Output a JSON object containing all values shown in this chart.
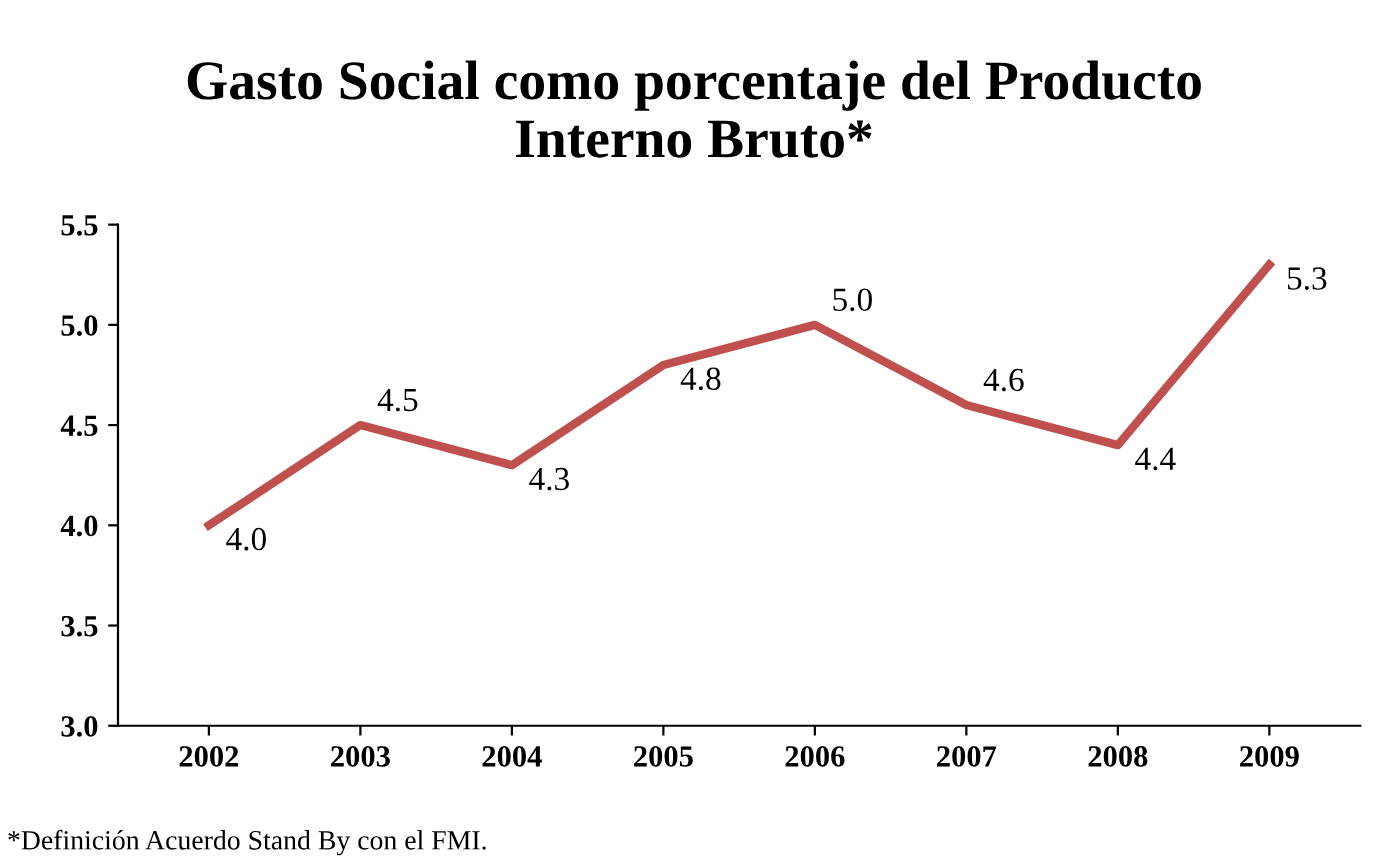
{
  "chart_data": {
    "type": "line",
    "title": "Gasto Social como porcentaje del Producto\nInterno Bruto*",
    "categories": [
      "2002",
      "2003",
      "2004",
      "2005",
      "2006",
      "2007",
      "2008",
      "2009"
    ],
    "values": [
      4.0,
      4.5,
      4.3,
      4.8,
      5.0,
      4.6,
      4.4,
      5.3
    ],
    "color": "#c0504d",
    "value_labels": [
      "4.0",
      "4.5",
      "4.3",
      "4.8",
      "5.0",
      "4.6",
      "4.4",
      "5.3"
    ],
    "ylim": [
      3.0,
      5.5
    ],
    "yticks": [
      {
        "value": 3.0,
        "label": "3.0"
      },
      {
        "value": 3.5,
        "label": "3.5"
      },
      {
        "value": 4.0,
        "label": "4.0"
      },
      {
        "value": 4.5,
        "label": "4.5"
      },
      {
        "value": 5.0,
        "label": "5.0"
      },
      {
        "value": 5.5,
        "label": "5.5"
      }
    ],
    "grid": false,
    "legend": false,
    "marker": "none",
    "line_style": "solid",
    "annotations": [
      "*Definición Acuerdo Stand By con el FMI."
    ]
  }
}
